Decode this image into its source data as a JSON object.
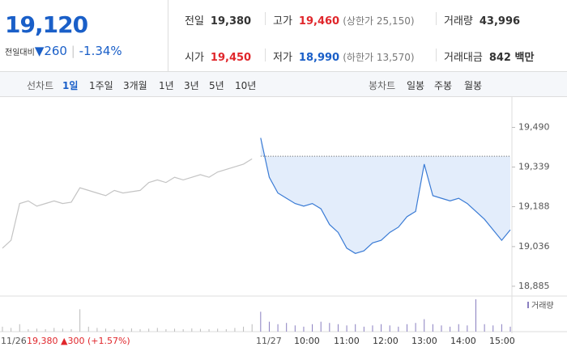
{
  "header": {
    "price": "19,120",
    "change_label": "전일대비",
    "change": "▼260",
    "change_rate": "-1.34%",
    "stats": [
      [
        "전일",
        "19,380",
        ""
      ],
      [
        "고가",
        "19,460",
        "(상한가 25,150)"
      ],
      [
        "거래량",
        "43,996",
        ""
      ],
      [
        "시가",
        "19,450",
        ""
      ],
      [
        "저가",
        "18,990",
        "(하한가 13,570)"
      ],
      [
        "거래대금",
        "842 백만",
        ""
      ]
    ]
  },
  "tabs": {
    "line_label": "선차트",
    "line": [
      "1일",
      "1주일",
      "3개월",
      "1년",
      "3년",
      "5년",
      "10년"
    ],
    "candle_label": "봉차트",
    "candle": [
      "일봉",
      "주봉",
      "월봉"
    ]
  },
  "chart_data": {
    "type": "line",
    "volume_label": "거래량",
    "ylim": [
      18860,
      19590
    ],
    "yticks": [
      {
        "value": 19490,
        "label": "19,490"
      },
      {
        "value": 19339,
        "label": "19,339"
      },
      {
        "value": 19188,
        "label": "19,188"
      },
      {
        "value": 19036,
        "label": "19,036"
      },
      {
        "value": 18885,
        "label": "18,885"
      }
    ],
    "reference": 19380,
    "xlabels": [
      "11/26",
      "19,380 ▲300 (+1.57%)",
      "11/27",
      "10:00",
      "11:00",
      "12:00",
      "13:00",
      "14:00",
      "15:00"
    ],
    "series": [
      {
        "color": "#c4c4c4",
        "values": [
          19030,
          19060,
          19200,
          19210,
          19190,
          19200,
          19210,
          19200,
          19205,
          19260,
          19250,
          19240,
          19230,
          19250,
          19240,
          19245,
          19250,
          19280,
          19290,
          19280,
          19300,
          19290,
          19300,
          19310,
          19300,
          19320,
          19330,
          19340,
          19350,
          19370,
          null,
          null,
          null,
          null,
          null,
          null,
          null,
          null,
          null,
          null,
          null,
          null,
          null,
          null,
          null,
          null,
          null,
          null,
          null,
          null,
          null,
          null,
          null,
          null,
          null,
          null,
          null,
          null,
          null,
          null
        ]
      },
      {
        "color": "#3a7bd5",
        "values": [
          null,
          null,
          null,
          null,
          null,
          null,
          null,
          null,
          null,
          null,
          null,
          null,
          null,
          null,
          null,
          null,
          null,
          null,
          null,
          null,
          null,
          null,
          null,
          null,
          null,
          null,
          null,
          null,
          null,
          null,
          19450,
          19300,
          19240,
          19220,
          19200,
          19190,
          19200,
          19180,
          19120,
          19090,
          19030,
          19010,
          19020,
          19050,
          19060,
          19090,
          19110,
          19150,
          19170,
          19350,
          19230,
          19220,
          19210,
          19220,
          19200,
          19170,
          19140,
          19100,
          19060,
          19100
        ]
      }
    ],
    "volume": [
      200,
      150,
      300,
      100,
      120,
      100,
      150,
      120,
      100,
      900,
      200,
      150,
      120,
      100,
      110,
      130,
      100,
      120,
      150,
      100,
      120,
      100,
      130,
      110,
      100,
      120,
      100,
      150,
      200,
      300,
      800,
      400,
      300,
      350,
      250,
      200,
      300,
      400,
      350,
      300,
      250,
      300,
      200,
      250,
      300,
      250,
      200,
      300,
      350,
      500,
      300,
      250,
      200,
      300,
      250,
      1300,
      300,
      250,
      300,
      200
    ]
  }
}
